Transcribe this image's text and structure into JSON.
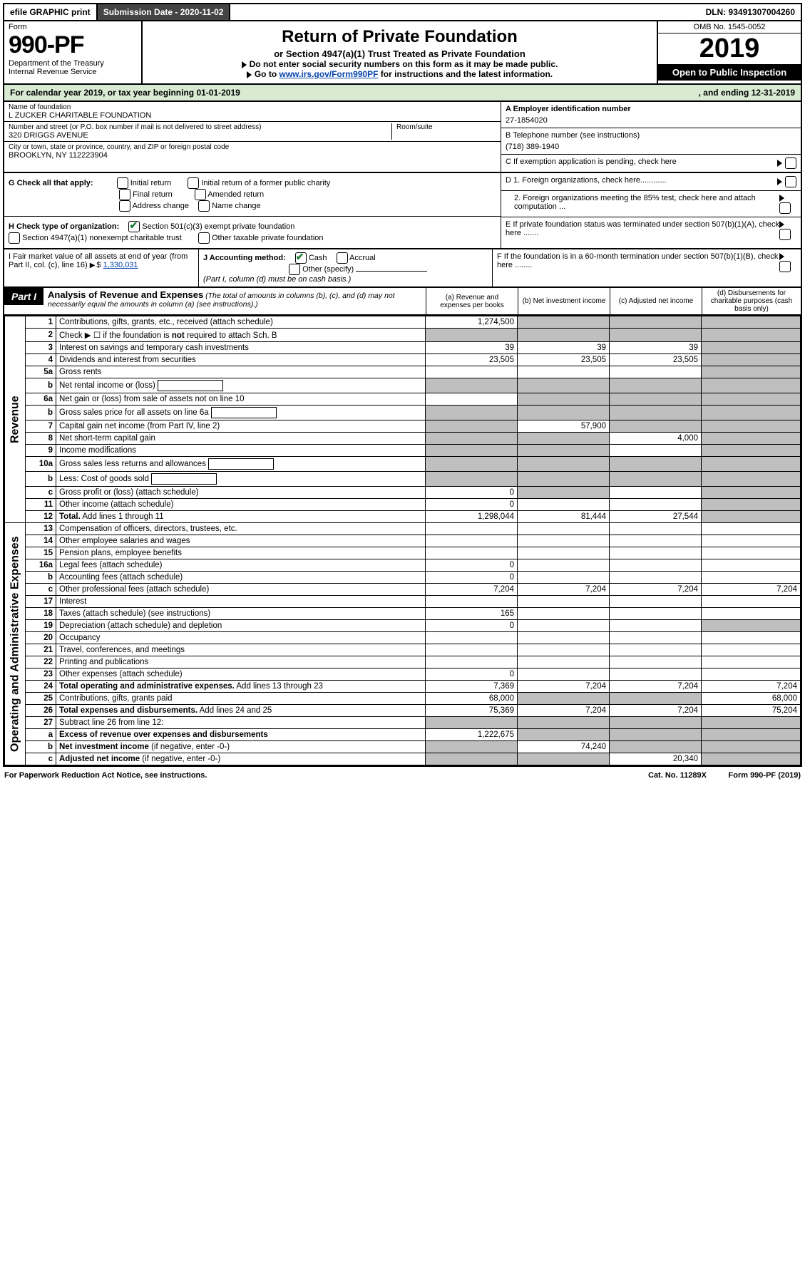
{
  "topbar": {
    "efile": "efile GRAPHIC print",
    "submission_label": "Submission Date - 2020-11-02",
    "dln_label": "DLN: 93491307004260"
  },
  "header": {
    "form_word": "Form",
    "form_number": "990-PF",
    "dept1": "Department of the Treasury",
    "dept2": "Internal Revenue Service",
    "title": "Return of Private Foundation",
    "subtitle": "or Section 4947(a)(1) Trust Treated as Private Foundation",
    "note1": "Do not enter social security numbers on this form as it may be made public.",
    "note2_pre": "Go to ",
    "note2_link": "www.irs.gov/Form990PF",
    "note2_post": " for instructions and the latest information.",
    "omb": "OMB No. 1545-0052",
    "year": "2019",
    "open": "Open to Public Inspection"
  },
  "bar": {
    "left": "For calendar year 2019, or tax year beginning 01-01-2019",
    "right": ", and ending 12-31-2019"
  },
  "id": {
    "name_label": "Name of foundation",
    "name": "L ZUCKER CHARITABLE FOUNDATION",
    "addr_label": "Number and street (or P.O. box number if mail is not delivered to street address)",
    "addr": "320 DRIGGS AVENUE",
    "room_label": "Room/suite",
    "city_label": "City or town, state or province, country, and ZIP or foreign postal code",
    "city": "BROOKLYN, NY  112223904",
    "a_label": "A Employer identification number",
    "a_val": "27-1854020",
    "b_label": "B Telephone number (see instructions)",
    "b_val": "(718) 389-1940",
    "c_label": "C If exemption application is pending, check here"
  },
  "g": {
    "label": "G Check all that apply:",
    "o1": "Initial return",
    "o2": "Initial return of a former public charity",
    "o3": "Final return",
    "o4": "Amended return",
    "o5": "Address change",
    "o6": "Name change"
  },
  "h": {
    "label": "H Check type of organization:",
    "o1": "Section 501(c)(3) exempt private foundation",
    "o2": "Section 4947(a)(1) nonexempt charitable trust",
    "o3": "Other taxable private foundation"
  },
  "i": {
    "label": "I Fair market value of all assets at end of year (from Part II, col. (c), line 16)",
    "arrow": "▶$",
    "val": "1,330,031"
  },
  "j": {
    "label": "J Accounting method:",
    "o1": "Cash",
    "o2": "Accrual",
    "o3": "Other (specify)",
    "note": "(Part I, column (d) must be on cash basis.)"
  },
  "dblock": {
    "d1": "D 1. Foreign organizations, check here............",
    "d2": "2. Foreign organizations meeting the 85% test, check here and attach computation ...",
    "e": "E  If private foundation status was terminated under section 507(b)(1)(A), check here .......",
    "f": "F  If the foundation is in a 60-month termination under section 507(b)(1)(B), check here ........"
  },
  "part1": {
    "tag": "Part I",
    "title": "Analysis of Revenue and Expenses",
    "subtitle": "(The total of amounts in columns (b), (c), and (d) may not necessarily equal the amounts in column (a) (see instructions).)",
    "ca": "(a)   Revenue and expenses per books",
    "cb": "(b)   Net investment income",
    "cc": "(c)   Adjusted net income",
    "cd": "(d)  Disbursements for charitable purposes (cash basis only)"
  },
  "vlabels": {
    "rev": "Revenue",
    "exp": "Operating and Administrative Expenses"
  },
  "rows": [
    {
      "n": "1",
      "l": "Contributions, gifts, grants, etc., received (attach schedule)",
      "a": "1,274,500",
      "b": "",
      "c": "",
      "d": "",
      "sb": true,
      "sc": true,
      "sd": true
    },
    {
      "n": "2",
      "l": "Check ▶ ☐ if the foundation is <b>not</b> required to attach Sch. B",
      "a": "",
      "b": "",
      "c": "",
      "d": "",
      "sb": true,
      "sc": true,
      "sd": true,
      "sa": true,
      "dots": true
    },
    {
      "n": "3",
      "l": "Interest on savings and temporary cash investments",
      "a": "39",
      "b": "39",
      "c": "39",
      "d": "",
      "sd": true
    },
    {
      "n": "4",
      "l": "Dividends and interest from securities",
      "a": "23,505",
      "b": "23,505",
      "c": "23,505",
      "d": "",
      "sd": true,
      "dots": true
    },
    {
      "n": "5a",
      "l": "Gross rents",
      "a": "",
      "b": "",
      "c": "",
      "d": "",
      "sd": true,
      "dots": true
    },
    {
      "n": "b",
      "l": "Net rental income or (loss)",
      "a": "",
      "b": "",
      "c": "",
      "d": "",
      "sa": true,
      "sb": true,
      "sc": true,
      "sd": true,
      "inline": true
    },
    {
      "n": "6a",
      "l": "Net gain or (loss) from sale of assets not on line 10",
      "a": "",
      "b": "",
      "c": "",
      "d": "",
      "sb": true,
      "sc": true,
      "sd": true
    },
    {
      "n": "b",
      "l": "Gross sales price for all assets on line 6a",
      "a": "",
      "b": "",
      "c": "",
      "d": "",
      "sa": true,
      "sb": true,
      "sc": true,
      "sd": true,
      "inline": true
    },
    {
      "n": "7",
      "l": "Capital gain net income (from Part IV, line 2)",
      "a": "",
      "b": "57,900",
      "c": "",
      "d": "",
      "sa": true,
      "sc": true,
      "sd": true,
      "dots": true
    },
    {
      "n": "8",
      "l": "Net short-term capital gain",
      "a": "",
      "b": "",
      "c": "4,000",
      "d": "",
      "sa": true,
      "sb": true,
      "sd": true,
      "dots": true
    },
    {
      "n": "9",
      "l": "Income modifications",
      "a": "",
      "b": "",
      "c": "",
      "d": "",
      "sa": true,
      "sb": true,
      "sd": true,
      "dots": true
    },
    {
      "n": "10a",
      "l": "Gross sales less returns and allowances",
      "a": "",
      "b": "",
      "c": "",
      "d": "",
      "sa": true,
      "sb": true,
      "sc": true,
      "sd": true,
      "inline": true
    },
    {
      "n": "b",
      "l": "Less: Cost of goods sold",
      "a": "",
      "b": "",
      "c": "",
      "d": "",
      "sa": true,
      "sb": true,
      "sc": true,
      "sd": true,
      "inline": true,
      "dots": true
    },
    {
      "n": "c",
      "l": "Gross profit or (loss) (attach schedule)",
      "a": "0",
      "b": "",
      "c": "",
      "d": "",
      "sb": true,
      "sd": true,
      "dots": true
    },
    {
      "n": "11",
      "l": "Other income (attach schedule)",
      "a": "0",
      "b": "",
      "c": "",
      "d": "",
      "sd": true,
      "dots": true
    },
    {
      "n": "12",
      "l": "<b>Total.</b> Add lines 1 through 11",
      "a": "1,298,044",
      "b": "81,444",
      "c": "27,544",
      "d": "",
      "sd": true,
      "dots": true
    }
  ],
  "exp_rows": [
    {
      "n": "13",
      "l": "Compensation of officers, directors, trustees, etc."
    },
    {
      "n": "14",
      "l": "Other employee salaries and wages",
      "dots": true
    },
    {
      "n": "15",
      "l": "Pension plans, employee benefits",
      "dots": true
    },
    {
      "n": "16a",
      "l": "Legal fees (attach schedule)",
      "a": "0",
      "dots": true
    },
    {
      "n": "b",
      "l": "Accounting fees (attach schedule)",
      "a": "0",
      "dots": true
    },
    {
      "n": "c",
      "l": "Other professional fees (attach schedule)",
      "a": "7,204",
      "b": "7,204",
      "c": "7,204",
      "d": "7,204",
      "dots": true
    },
    {
      "n": "17",
      "l": "Interest",
      "dots": true
    },
    {
      "n": "18",
      "l": "Taxes (attach schedule) (see instructions)",
      "a": "165",
      "dots": true
    },
    {
      "n": "19",
      "l": "Depreciation (attach schedule) and depletion",
      "sd": true,
      "a": "0",
      "dots": true
    },
    {
      "n": "20",
      "l": "Occupancy",
      "dots": true
    },
    {
      "n": "21",
      "l": "Travel, conferences, and meetings",
      "dots": true
    },
    {
      "n": "22",
      "l": "Printing and publications",
      "dots": true
    },
    {
      "n": "23",
      "l": "Other expenses (attach schedule)",
      "a": "0",
      "dots": true
    },
    {
      "n": "24",
      "l": "<b>Total operating and administrative expenses.</b> Add lines 13 through 23",
      "a": "7,369",
      "b": "7,204",
      "c": "7,204",
      "d": "7,204",
      "dots": true
    },
    {
      "n": "25",
      "l": "Contributions, gifts, grants paid",
      "a": "68,000",
      "d": "68,000",
      "sb": true,
      "sc": true,
      "dots": true
    },
    {
      "n": "26",
      "l": "<b>Total expenses and disbursements.</b> Add lines 24 and 25",
      "a": "75,369",
      "b": "7,204",
      "c": "7,204",
      "d": "75,204"
    },
    {
      "n": "27",
      "l": "Subtract line 26 from line 12:",
      "sa": true,
      "sb": true,
      "sc": true,
      "sd": true
    },
    {
      "n": "a",
      "l": "<b>Excess of revenue over expenses and disbursements</b>",
      "a": "1,222,675",
      "sb": true,
      "sc": true,
      "sd": true
    },
    {
      "n": "b",
      "l": "<b>Net investment income</b> (if negative, enter -0-)",
      "b": "74,240",
      "sa": true,
      "sc": true,
      "sd": true
    },
    {
      "n": "c",
      "l": "<b>Adjusted net income</b> (if negative, enter -0-)",
      "c": "20,340",
      "sa": true,
      "sb": true,
      "sd": true,
      "dots": true
    }
  ],
  "footer": {
    "left": "For Paperwork Reduction Act Notice, see instructions.",
    "mid": "Cat. No. 11289X",
    "right": "Form 990-PF (2019)"
  },
  "colwidths": {
    "a": 120,
    "b": 120,
    "c": 120,
    "d": 130
  }
}
